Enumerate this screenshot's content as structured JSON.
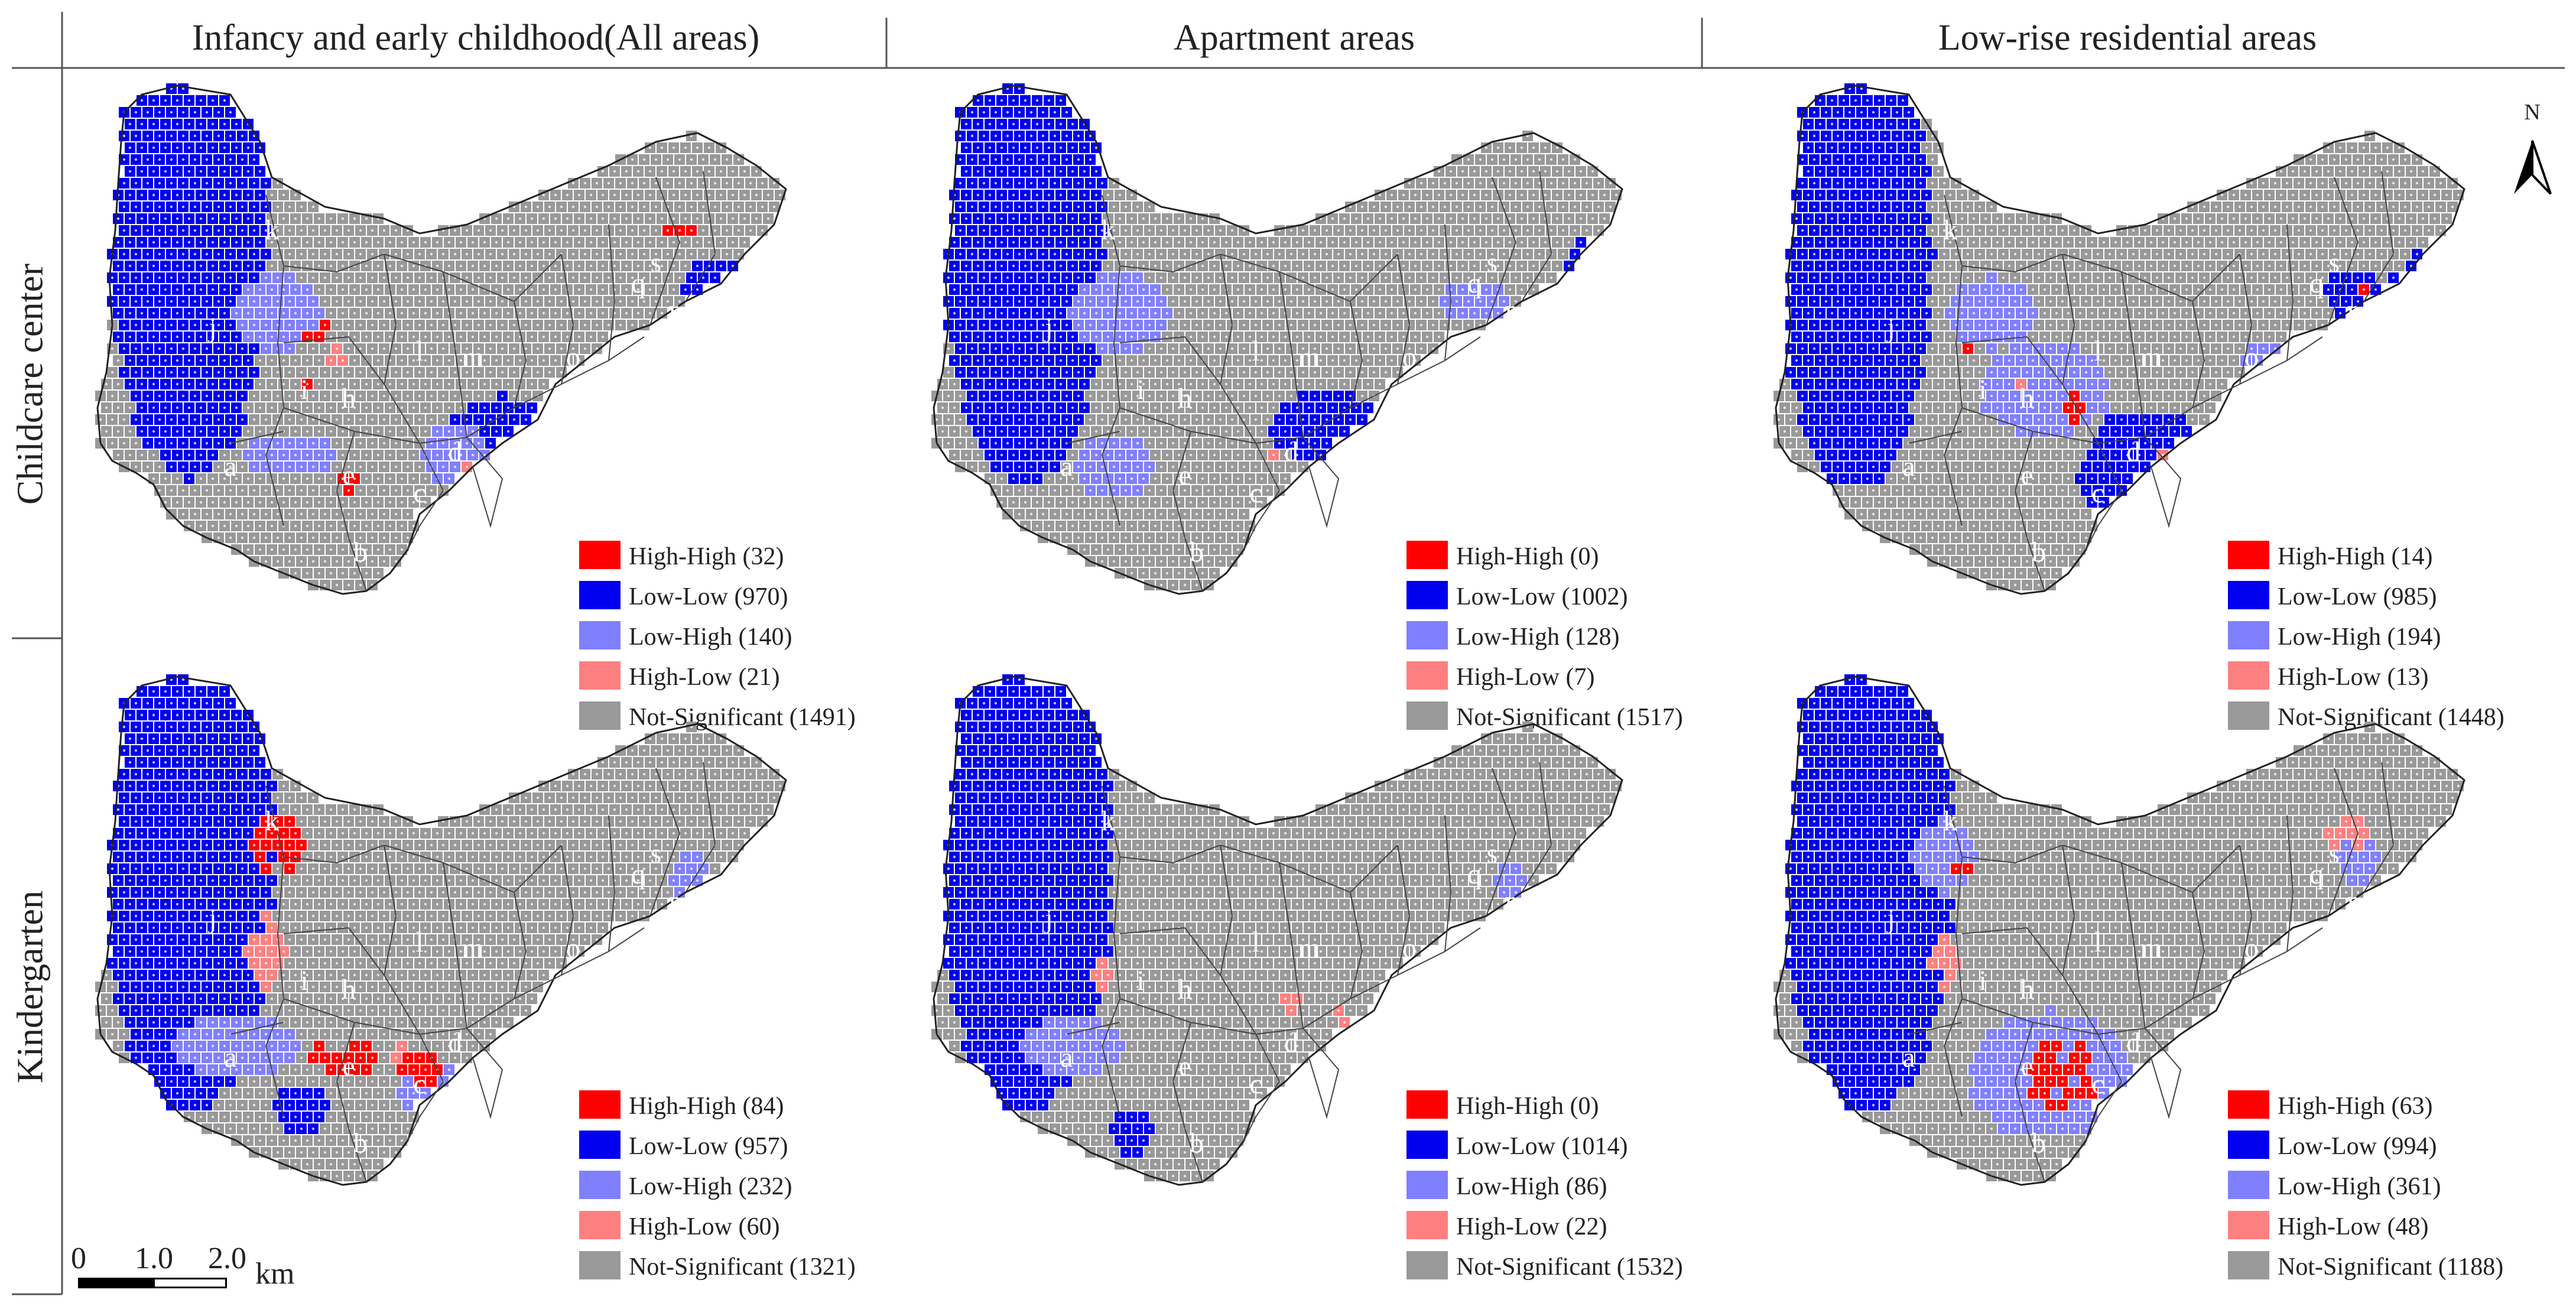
{
  "columns": [
    "Infancy and early childhood(All areas)",
    "Apartment areas",
    "Low-rise residential areas"
  ],
  "rows": [
    "Childcare center",
    "Kindergarten"
  ],
  "north_label": "N",
  "scale": {
    "ticks": [
      "0",
      "1.0",
      "2.0"
    ],
    "unit": "km"
  },
  "colors": {
    "high_high": "#ff0000",
    "low_low": "#0000ee",
    "low_high": "#8080ff",
    "high_low": "#ff8080",
    "not_significant": "#999999"
  },
  "region_labels": [
    "a",
    "b",
    "c",
    "d",
    "e",
    "f",
    "g",
    "h",
    "i",
    "j",
    "k",
    "l",
    "m",
    "n",
    "o",
    "p",
    "q",
    "r",
    "s",
    "t"
  ],
  "panels": [
    {
      "row": 0,
      "col": 0,
      "legend": [
        "High-High (32)",
        "Low-Low (970)",
        "Low-High (140)",
        "High-Low (21)",
        "Not-Significant (1491)"
      ]
    },
    {
      "row": 0,
      "col": 1,
      "legend": [
        "High-High (0)",
        "Low-Low (1002)",
        "Low-High (128)",
        "High-Low (7)",
        "Not-Significant (1517)"
      ]
    },
    {
      "row": 0,
      "col": 2,
      "legend": [
        "High-High (14)",
        "Low-Low (985)",
        "Low-High (194)",
        "High-Low (13)",
        "Not-Significant (1448)"
      ]
    },
    {
      "row": 1,
      "col": 0,
      "legend": [
        "High-High (84)",
        "Low-Low (957)",
        "Low-High (232)",
        "High-Low (60)",
        "Not-Significant (1321)"
      ]
    },
    {
      "row": 1,
      "col": 1,
      "legend": [
        "High-High (0)",
        "Low-Low (1014)",
        "Low-High (86)",
        "High-Low (22)",
        "Not-Significant (1532)"
      ]
    },
    {
      "row": 1,
      "col": 2,
      "legend": [
        "High-High (63)",
        "Low-Low (994)",
        "Low-High (361)",
        "High-Low (48)",
        "Not-Significant (1188)"
      ]
    }
  ]
}
